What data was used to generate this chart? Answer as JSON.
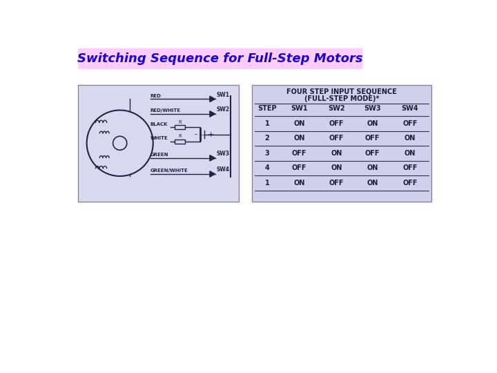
{
  "title": "Switching Sequence for Full-Step Motors",
  "title_color": "#1a00cc",
  "title_bg_color": "#ffccff",
  "title_fontsize": 13,
  "bg_color": "#ffffff",
  "left_panel_bg": "#d8d8ee",
  "right_panel_bg": "#d0d0ee",
  "table_title_line1": "FOUR STEP INPUT SEQUENCE",
  "table_title_line2": "(FULL-STEP MODE)*",
  "table_headers": [
    "STEP",
    "SW1",
    "SW2",
    "SW3",
    "SW4"
  ],
  "table_rows": [
    [
      "1",
      "ON",
      "OFF",
      "ON",
      "OFF"
    ],
    [
      "2",
      "ON",
      "OFF",
      "OFF",
      "ON"
    ],
    [
      "3",
      "OFF",
      "ON",
      "OFF",
      "ON"
    ],
    [
      "4",
      "OFF",
      "ON",
      "ON",
      "OFF"
    ],
    [
      "1",
      "ON",
      "OFF",
      "ON",
      "OFF"
    ]
  ],
  "wire_labels": [
    "RED",
    "RED/WHITE",
    "BLACK",
    "WHITE",
    "GREEN",
    "GREEN/WHITE"
  ],
  "sw_labels": [
    "SW1",
    "SW2",
    "SW3",
    "SW4"
  ],
  "panel_edge_color": "#888899",
  "diagram_color": "#222244",
  "table_text_color": "#1a1a3a"
}
